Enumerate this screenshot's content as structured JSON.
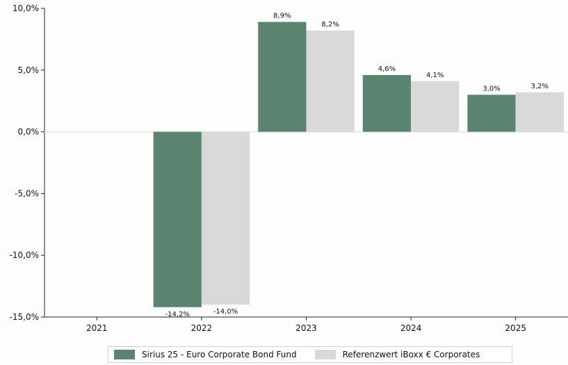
{
  "chart_data": {
    "type": "bar",
    "categories": [
      "2021",
      "2022",
      "2023",
      "2024",
      "2025"
    ],
    "series": [
      {
        "name": "Sirius 25 - Euro Corporate Bond Fund",
        "color": "#5b8470",
        "values": [
          null,
          -14.2,
          8.9,
          4.6,
          3.0
        ],
        "labels": [
          "",
          "-14,2%",
          "8,9%",
          "4,6%",
          "3,0%"
        ]
      },
      {
        "name": "Referenzwert iBoxx € Corporates",
        "color": "#d9d9d9",
        "values": [
          null,
          -14.0,
          8.2,
          4.1,
          3.2
        ],
        "labels": [
          "",
          "-14,0%",
          "8,2%",
          "4,1%",
          "3,2%"
        ]
      }
    ],
    "ylim": [
      -15,
      10
    ],
    "yticks": [
      10,
      5,
      0,
      -5,
      -10,
      -15
    ],
    "ytick_labels": [
      "10,0%",
      "5,0%",
      "0,0%",
      "-5,0%",
      "-10,0%",
      "-15,0%"
    ],
    "grid": false,
    "legend_position": "bottom"
  }
}
